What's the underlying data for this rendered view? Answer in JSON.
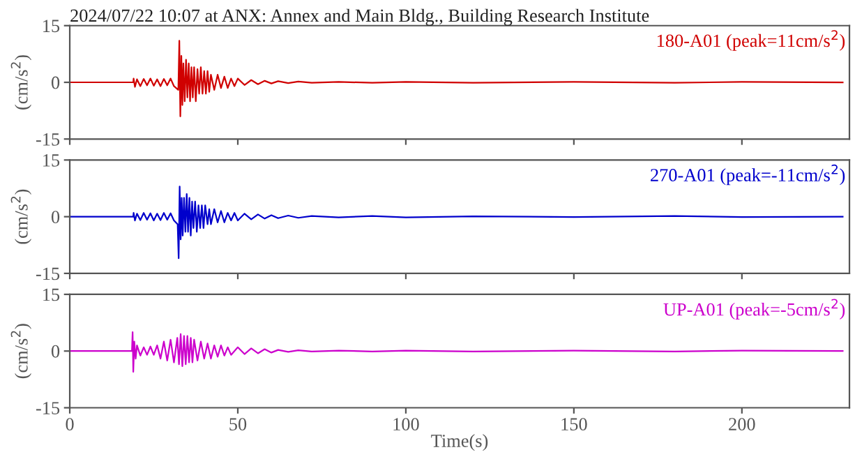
{
  "chart_data": [
    {
      "type": "line",
      "title": "2024/07/22 10:07 at ANX: Annex and Main Bldg., Building Research Institute",
      "ylabel": "(cm/s$^{2}$)",
      "tick_labels": "y",
      "xlim": [
        0,
        232
      ],
      "xticks": [
        0,
        50,
        100,
        150,
        200
      ],
      "ylim": [
        -15,
        15
      ],
      "yticks": [
        -15,
        0,
        15
      ],
      "series": [
        {
          "name": "180-A01 (peak=11cm/s$^{2}$)",
          "color": "#d00000",
          "x": [
            0,
            18.9,
            19.0,
            19.4,
            20,
            21,
            22,
            23,
            24,
            25,
            26,
            27,
            28,
            29,
            30,
            31,
            32.3,
            32.6,
            32.9,
            33.2,
            33.5,
            33.8,
            34.2,
            34.6,
            35.0,
            35.4,
            35.8,
            36.2,
            36.6,
            37.0,
            37.5,
            38,
            38.5,
            39,
            39.5,
            40,
            40.5,
            41,
            41.5,
            42,
            43,
            44,
            45,
            46,
            47,
            48,
            49,
            50,
            52,
            54,
            56,
            58,
            60,
            62,
            65,
            68,
            72,
            80,
            90,
            100,
            120,
            150,
            180,
            200,
            230
          ],
          "values": [
            0,
            0,
            1,
            -1.2,
            0.8,
            -1,
            0.9,
            -0.8,
            1,
            -0.9,
            0.8,
            -1,
            0.9,
            -0.8,
            1,
            -1,
            -2,
            11,
            -9,
            7,
            -6,
            5,
            -5,
            6,
            -4,
            5,
            -5,
            4,
            -4,
            4,
            -5,
            3.5,
            -3,
            4,
            -3,
            3,
            -3,
            3,
            -2.5,
            2,
            -2,
            2,
            -1.5,
            1.5,
            -1.5,
            1,
            -1,
            1,
            -0.7,
            0.6,
            -0.5,
            0.4,
            -0.3,
            0.3,
            -0.2,
            0.2,
            -0.1,
            0.1,
            -0.1,
            0.1,
            -0.1,
            0.1,
            -0.1,
            0.1,
            0
          ]
        }
      ]
    },
    {
      "type": "line",
      "ylabel": "(cm/s$^{2}$)",
      "tick_labels": "y",
      "xlim": [
        0,
        232
      ],
      "xticks": [
        0,
        50,
        100,
        150,
        200
      ],
      "ylim": [
        -15,
        15
      ],
      "yticks": [
        -15,
        0,
        15
      ],
      "series": [
        {
          "name": "270-A01 (peak=-11cm/s$^{2}$)",
          "color": "#0000cc",
          "x": [
            0,
            18.9,
            19.0,
            19.4,
            20,
            21,
            22,
            23,
            24,
            25,
            26,
            27,
            28,
            29,
            30,
            31,
            32.1,
            32.4,
            32.7,
            33.0,
            33.3,
            33.6,
            34.0,
            34.4,
            34.8,
            35.2,
            35.6,
            36.0,
            36.4,
            36.8,
            37.3,
            37.8,
            38.3,
            38.8,
            39.3,
            39.8,
            40.3,
            41,
            41.5,
            42,
            43,
            44,
            45,
            46,
            47,
            48,
            49,
            50,
            52,
            54,
            56,
            58,
            60,
            62,
            65,
            68,
            72,
            80,
            90,
            100,
            120,
            150,
            180,
            200,
            230
          ],
          "values": [
            0,
            0,
            1,
            -1,
            0.8,
            -0.9,
            1,
            -0.8,
            0.9,
            -1,
            0.8,
            -0.9,
            1,
            -0.8,
            0.9,
            -1,
            -2,
            -11,
            8,
            -6,
            5,
            -5,
            5,
            -4,
            6,
            -4,
            5,
            -5,
            4,
            -3,
            4,
            -4,
            3,
            -3,
            3,
            -3,
            3,
            -2,
            2,
            -2,
            2,
            -1.5,
            1.5,
            -1.5,
            1,
            -1,
            1,
            -1,
            0.8,
            -0.7,
            0.6,
            -0.5,
            0.4,
            -0.4,
            0.3,
            -0.3,
            0.2,
            -0.2,
            0.2,
            -0.2,
            0.1,
            -0.1,
            0.2,
            -0.1,
            0
          ]
        }
      ]
    },
    {
      "type": "line",
      "xlabel": "Time(s)",
      "ylabel": "(cm/s$^{2}$)",
      "xlim": [
        0,
        232
      ],
      "xticks": [
        0,
        50,
        100,
        150,
        200
      ],
      "ylim": [
        -15,
        15
      ],
      "yticks": [
        -15,
        0,
        15
      ],
      "series": [
        {
          "name": "UP-A01 (peak=-5cm/s$^{2}$)",
          "color": "#cc00cc",
          "x": [
            0,
            18.5,
            18.7,
            18.9,
            19.2,
            19.6,
            20,
            21,
            22,
            23,
            24,
            25,
            26,
            27,
            28,
            29,
            30,
            31,
            32,
            32.5,
            33,
            33.5,
            34,
            34.5,
            35,
            35.5,
            36,
            36.5,
            37,
            38,
            39,
            40,
            41,
            42,
            43,
            44,
            45,
            46,
            47,
            48,
            50,
            52,
            54,
            56,
            58,
            60,
            62,
            65,
            68,
            72,
            80,
            90,
            100,
            120,
            150,
            180,
            200,
            230
          ],
          "values": [
            0,
            0,
            5,
            -5.5,
            2.5,
            -2,
            1.5,
            -1.2,
            1,
            -1,
            1.2,
            -1,
            1.5,
            -2,
            2.5,
            -2.5,
            3,
            -3,
            3.5,
            -3.5,
            4.5,
            -4,
            4,
            -3.5,
            4,
            -3,
            3.5,
            -3,
            3,
            -2.5,
            2.5,
            -2,
            2,
            -2,
            1.5,
            -1.5,
            1.5,
            -1.2,
            1,
            -1,
            1,
            -0.8,
            0.7,
            -0.6,
            0.5,
            -0.4,
            0.3,
            -0.2,
            0.2,
            -0.1,
            0.1,
            -0.1,
            0.1,
            -0.1,
            0.1,
            -0.1,
            0.1,
            0
          ]
        }
      ]
    }
  ]
}
